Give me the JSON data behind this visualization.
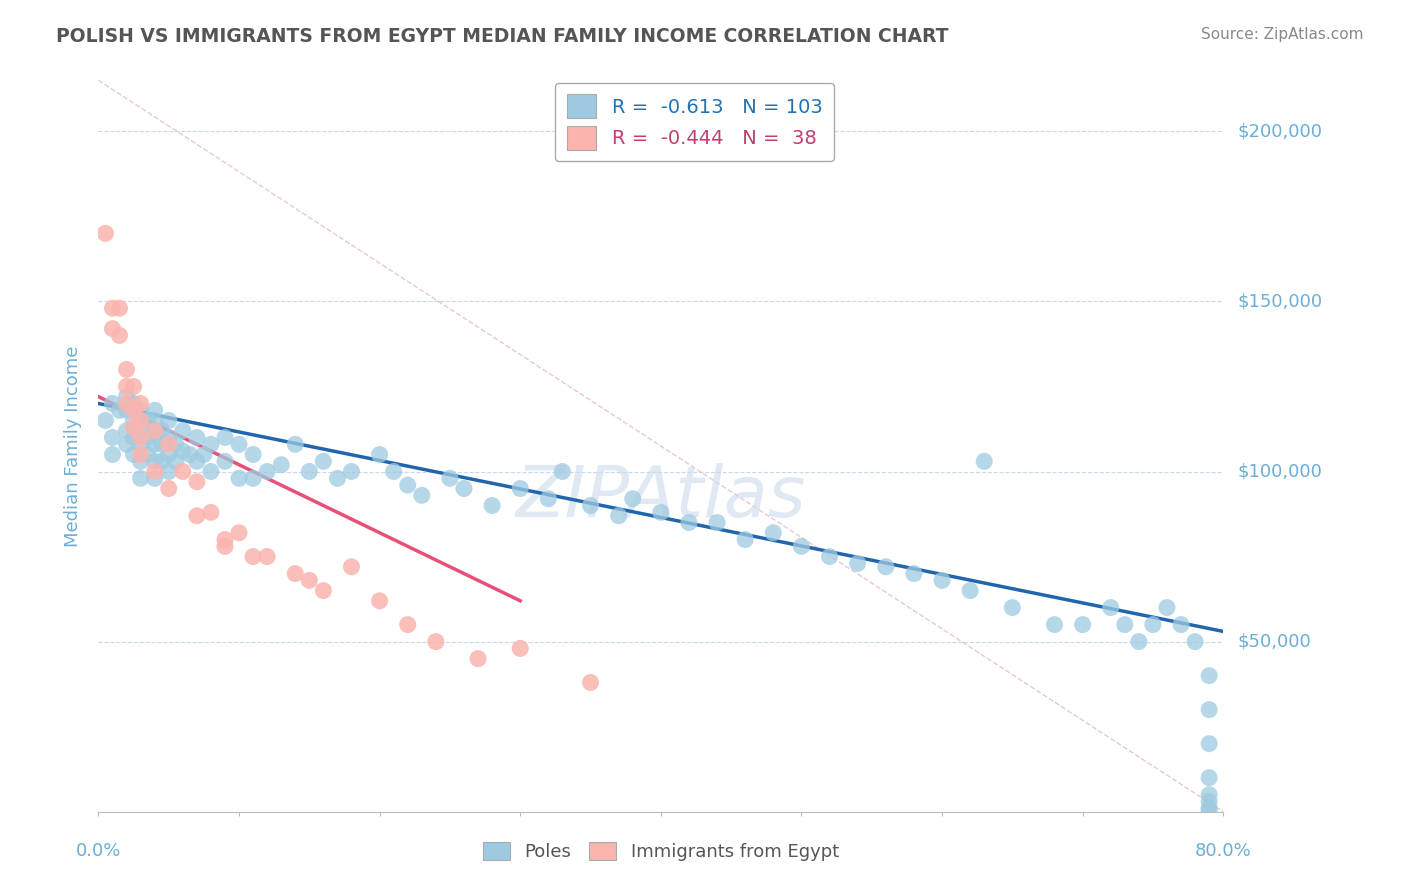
{
  "title": "POLISH VS IMMIGRANTS FROM EGYPT MEDIAN FAMILY INCOME CORRELATION CHART",
  "source": "Source: ZipAtlas.com",
  "ylabel": "Median Family Income",
  "yticks": [
    50000,
    100000,
    150000,
    200000
  ],
  "ytick_labels": [
    "$50,000",
    "$100,000",
    "$150,000",
    "$200,000"
  ],
  "ylim": [
    0,
    215000
  ],
  "xlim": [
    0.0,
    0.8
  ],
  "poles_R": "-0.613",
  "poles_N": "103",
  "egypt_R": "-0.444",
  "egypt_N": "38",
  "poles_color": "#9ecae1",
  "poles_color_dark": "#2166ac",
  "egypt_color": "#fbb4ae",
  "egypt_color_pink": "#e8507a",
  "background_color": "#ffffff",
  "grid_color": "#c8d8e8",
  "title_color": "#555555",
  "axis_label_color": "#6baed6",
  "legend_R_color": "#2171b5",
  "watermark": "ZIPAtlas",
  "poles_scatter_x": [
    0.005,
    0.01,
    0.01,
    0.01,
    0.015,
    0.02,
    0.02,
    0.02,
    0.02,
    0.025,
    0.025,
    0.025,
    0.025,
    0.025,
    0.03,
    0.03,
    0.03,
    0.03,
    0.03,
    0.03,
    0.035,
    0.035,
    0.035,
    0.04,
    0.04,
    0.04,
    0.04,
    0.04,
    0.04,
    0.045,
    0.045,
    0.045,
    0.05,
    0.05,
    0.05,
    0.05,
    0.055,
    0.055,
    0.06,
    0.06,
    0.065,
    0.07,
    0.07,
    0.075,
    0.08,
    0.08,
    0.09,
    0.09,
    0.1,
    0.1,
    0.11,
    0.11,
    0.12,
    0.13,
    0.14,
    0.15,
    0.16,
    0.17,
    0.18,
    0.2,
    0.21,
    0.22,
    0.23,
    0.25,
    0.26,
    0.28,
    0.3,
    0.32,
    0.33,
    0.35,
    0.37,
    0.38,
    0.4,
    0.42,
    0.44,
    0.46,
    0.48,
    0.5,
    0.52,
    0.54,
    0.56,
    0.58,
    0.6,
    0.62,
    0.63,
    0.65,
    0.68,
    0.7,
    0.72,
    0.73,
    0.74,
    0.75,
    0.76,
    0.77,
    0.78,
    0.79,
    0.79,
    0.79,
    0.79,
    0.79,
    0.79,
    0.79,
    0.79
  ],
  "poles_scatter_y": [
    115000,
    120000,
    110000,
    105000,
    118000,
    122000,
    118000,
    112000,
    108000,
    120000,
    118000,
    115000,
    110000,
    105000,
    118000,
    115000,
    112000,
    108000,
    103000,
    98000,
    115000,
    110000,
    105000,
    118000,
    115000,
    112000,
    108000,
    103000,
    98000,
    112000,
    108000,
    103000,
    115000,
    110000,
    105000,
    100000,
    108000,
    103000,
    112000,
    106000,
    105000,
    110000,
    103000,
    105000,
    108000,
    100000,
    110000,
    103000,
    108000,
    98000,
    105000,
    98000,
    100000,
    102000,
    108000,
    100000,
    103000,
    98000,
    100000,
    105000,
    100000,
    96000,
    93000,
    98000,
    95000,
    90000,
    95000,
    92000,
    100000,
    90000,
    87000,
    92000,
    88000,
    85000,
    85000,
    80000,
    82000,
    78000,
    75000,
    73000,
    72000,
    70000,
    68000,
    65000,
    103000,
    60000,
    55000,
    55000,
    60000,
    55000,
    50000,
    55000,
    60000,
    55000,
    50000,
    40000,
    30000,
    20000,
    10000,
    5000,
    3000,
    1000,
    500
  ],
  "egypt_scatter_x": [
    0.005,
    0.01,
    0.01,
    0.015,
    0.015,
    0.02,
    0.02,
    0.02,
    0.025,
    0.025,
    0.025,
    0.03,
    0.03,
    0.03,
    0.03,
    0.04,
    0.04,
    0.05,
    0.05,
    0.06,
    0.07,
    0.07,
    0.08,
    0.09,
    0.09,
    0.1,
    0.11,
    0.12,
    0.14,
    0.15,
    0.16,
    0.18,
    0.2,
    0.22,
    0.24,
    0.27,
    0.3,
    0.35
  ],
  "egypt_scatter_y": [
    170000,
    148000,
    142000,
    148000,
    140000,
    130000,
    125000,
    120000,
    125000,
    118000,
    113000,
    120000,
    115000,
    110000,
    105000,
    112000,
    100000,
    108000,
    95000,
    100000,
    97000,
    87000,
    88000,
    80000,
    78000,
    82000,
    75000,
    75000,
    70000,
    68000,
    65000,
    72000,
    62000,
    55000,
    50000,
    45000,
    48000,
    38000
  ],
  "poles_trend_x": [
    0.0,
    0.8
  ],
  "poles_trend_y": [
    120000,
    53000
  ],
  "egypt_trend_x": [
    0.0,
    0.3
  ],
  "egypt_trend_y": [
    122000,
    62000
  ],
  "diag_line_x": [
    0.0,
    0.8
  ],
  "diag_line_y": [
    215000,
    0
  ]
}
